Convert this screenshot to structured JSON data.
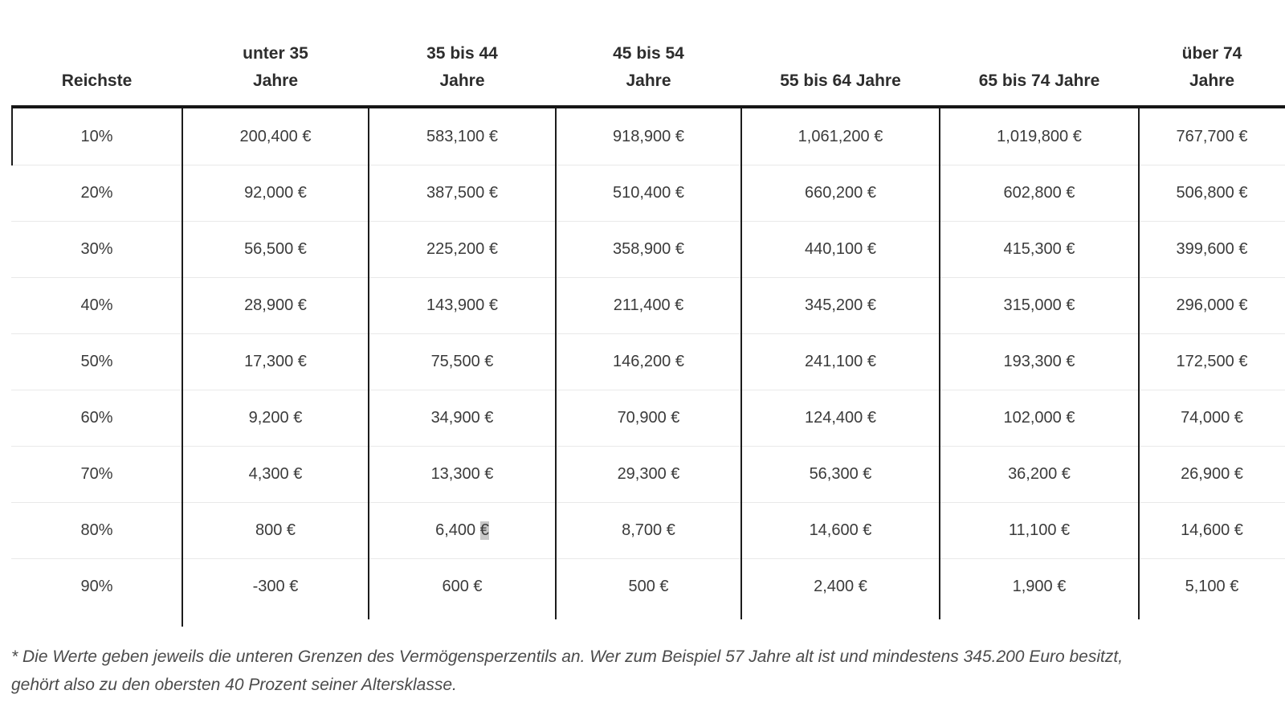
{
  "chart_data": {
    "type": "table",
    "row_header_label": "Reichste",
    "columns": [
      "unter 35\nJahre",
      "35 bis 44\nJahre",
      "45 bis 54\nJahre",
      "55 bis 64 Jahre",
      "65 bis 74 Jahre",
      "über 74\nJahre"
    ],
    "rows": [
      {
        "percentile": "10%",
        "values": [
          "200,400 €",
          "583,100 €",
          "918,900 €",
          "1,061,200 €",
          "1,019,800 €",
          "767,700 €"
        ]
      },
      {
        "percentile": "20%",
        "values": [
          "92,000 €",
          "387,500 €",
          "510,400 €",
          "660,200 €",
          "602,800 €",
          "506,800 €"
        ]
      },
      {
        "percentile": "30%",
        "values": [
          "56,500 €",
          "225,200 €",
          "358,900 €",
          "440,100 €",
          "415,300 €",
          "399,600 €"
        ]
      },
      {
        "percentile": "40%",
        "values": [
          "28,900 €",
          "143,900 €",
          "211,400 €",
          "345,200 €",
          "315,000 €",
          "296,000 €"
        ]
      },
      {
        "percentile": "50%",
        "values": [
          "17,300 €",
          "75,500 €",
          "146,200 €",
          "241,100 €",
          "193,300 €",
          "172,500 €"
        ]
      },
      {
        "percentile": "60%",
        "values": [
          "9,200 €",
          "34,900 €",
          "70,900 €",
          "124,400 €",
          "102,000 €",
          "74,000 €"
        ]
      },
      {
        "percentile": "70%",
        "values": [
          "4,300 €",
          "13,300 €",
          "29,300 €",
          "56,300 €",
          "36,200 €",
          "26,900 €"
        ]
      },
      {
        "percentile": "80%",
        "values": [
          "800 €",
          "6,400 €",
          "8,700 €",
          "14,600 €",
          "11,100 €",
          "14,600 €"
        ]
      },
      {
        "percentile": "90%",
        "values": [
          "-300 €",
          "600 €",
          "500 €",
          "2,400 €",
          "1,900 €",
          "5,100 €"
        ]
      }
    ]
  },
  "selection": {
    "row_index": 7,
    "value_index": 1,
    "selected_text": "€",
    "highlight_color": "#c8c8c8"
  },
  "footnote": {
    "text": "* Die Werte geben jeweils die unteren Grenzen des Vermögensperzentils an. Wer zum Beispiel 57 Jahre alt ist und mindestens 345.200 Euro besitzt,\ngehört also zu den obersten 40 Prozent seiner Altersklasse."
  },
  "colors": {
    "header_text": "#2d2d2d",
    "body_text": "#3b3b3b",
    "strong_line": "#1c1c1c",
    "row_separator": "#e9e9e9",
    "selection_bg": "#c8c8c8"
  }
}
